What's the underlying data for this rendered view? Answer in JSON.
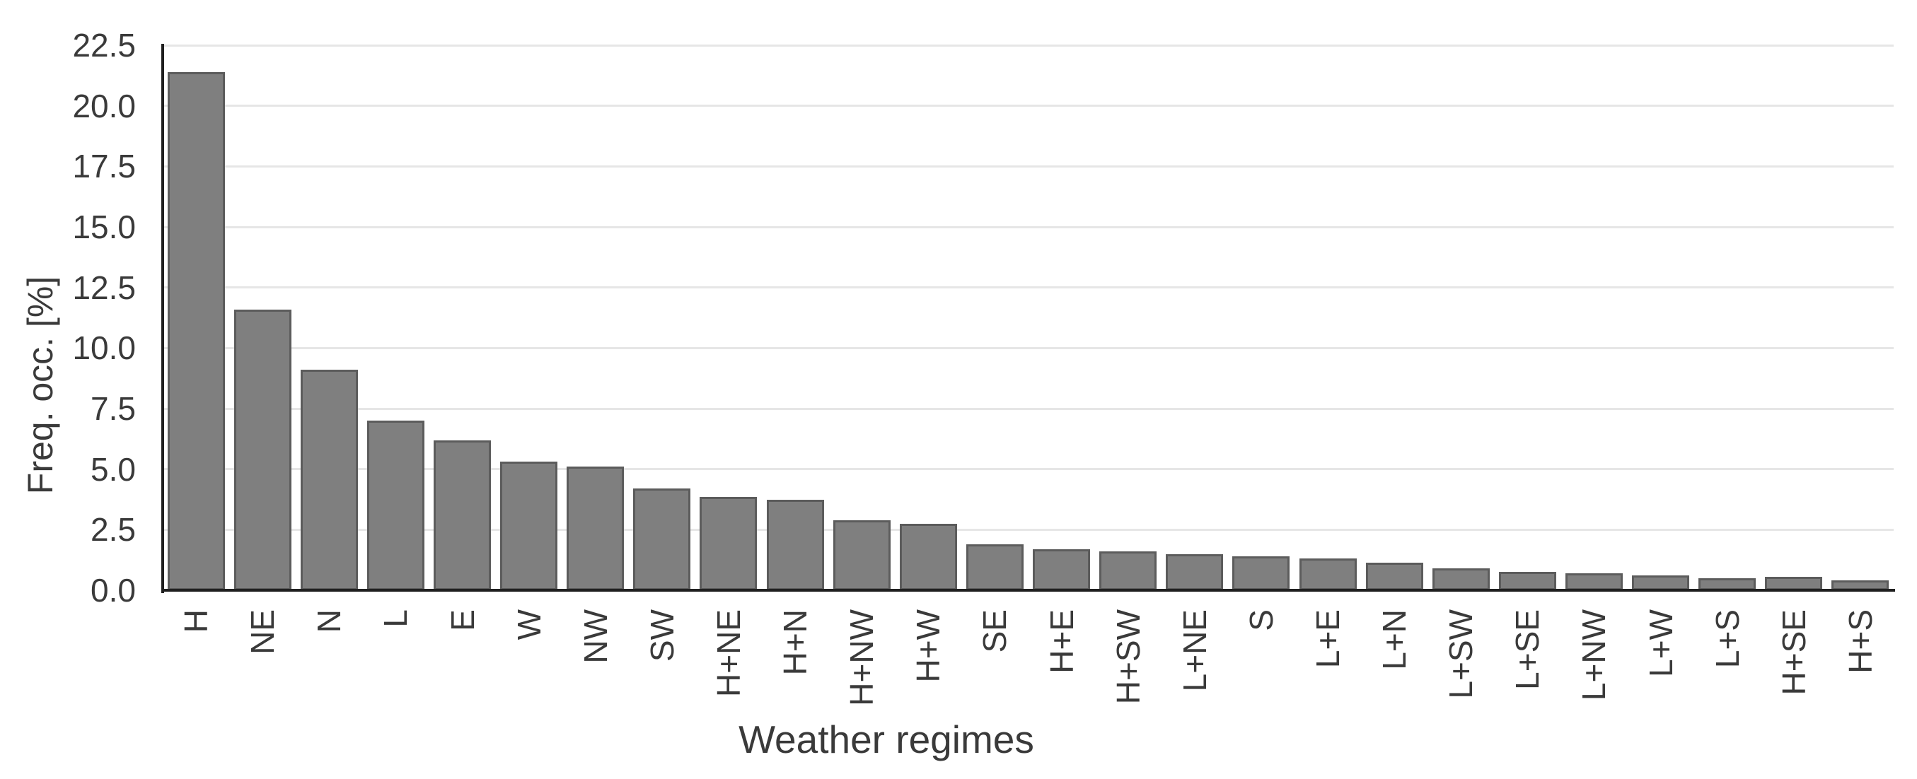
{
  "chart_data": {
    "type": "bar",
    "title": "",
    "xlabel": "Weather regimes",
    "ylabel": "Freq. occ. [%]",
    "categories": [
      "H",
      "NE",
      "N",
      "L",
      "E",
      "W",
      "NW",
      "SW",
      "H+NE",
      "H+N",
      "H+NW",
      "H+W",
      "SE",
      "H+E",
      "H+SW",
      "L+NE",
      "S",
      "L+E",
      "L+N",
      "L+SW",
      "L+SE",
      "L+NW",
      "L+W",
      "L+S",
      "H+SE",
      "H+S"
    ],
    "values": [
      21.4,
      11.6,
      9.1,
      7.0,
      6.2,
      5.3,
      5.1,
      4.2,
      3.85,
      3.75,
      2.9,
      2.75,
      1.9,
      1.7,
      1.6,
      1.5,
      1.4,
      1.3,
      1.15,
      0.9,
      0.75,
      0.7,
      0.6,
      0.5,
      0.55,
      0.4
    ],
    "ylim": [
      0,
      22.5
    ],
    "ytick_step": 2.5,
    "ytick_labels": [
      "0.0",
      "2.5",
      "5.0",
      "7.5",
      "10.0",
      "12.5",
      "15.0",
      "17.5",
      "20.0",
      "22.5"
    ],
    "grid": "horizontal-only",
    "legend": "none",
    "colors": {
      "bar_fill": "#7f7f7f",
      "bar_edge": "#5c5c5c",
      "grid_line": "#e6e6e6",
      "axis_spine": "#1f1f1f",
      "tick_text": "#3a3a3a",
      "label_text": "#3a3a3a",
      "background": "#ffffff"
    }
  }
}
